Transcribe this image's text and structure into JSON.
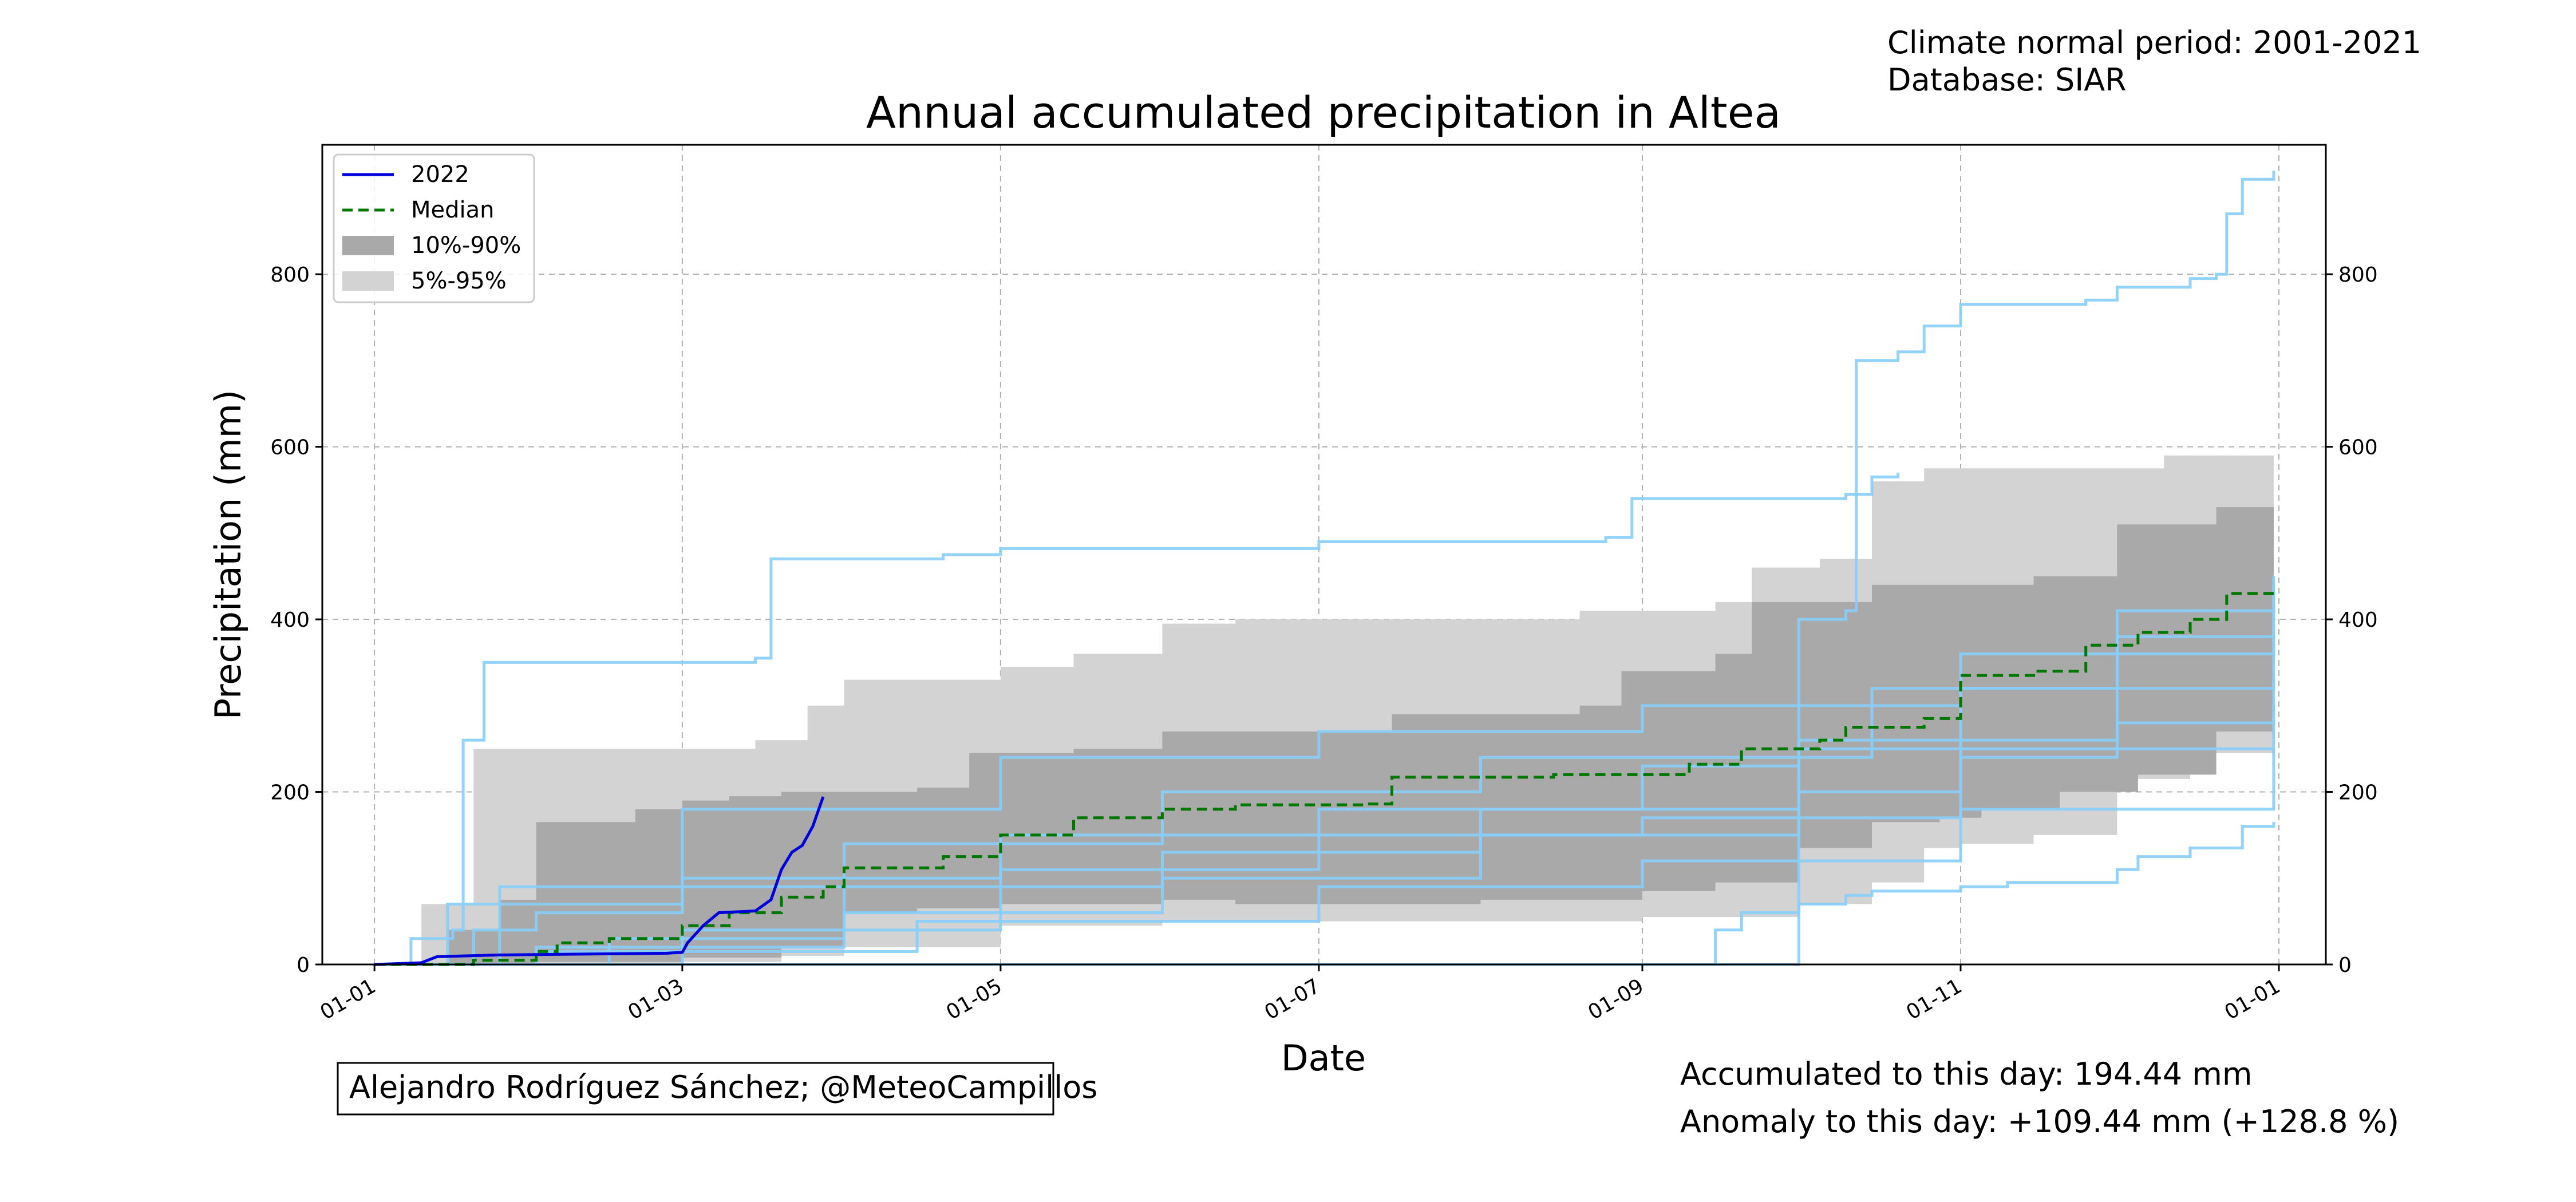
{
  "header": {
    "period_text": "Climate normal period: 2001-2021",
    "database_text": "Database: SIAR"
  },
  "footer": {
    "author_text": "Alejandro Rodríguez Sánchez; @MeteoCampillos",
    "accumulated_text": "Accumulated to this day: 194.44 mm",
    "anomaly_text": "Anomaly to this day: +109.44 mm (+128.8 %)",
    "anomaly_color": "#0000ff"
  },
  "colors": {
    "current": "#0000dd",
    "median": "#007700",
    "band_10_90": "#a9a9a9",
    "band_5_95": "#d3d3d3",
    "years": "#87cefa"
  },
  "chart_data": {
    "type": "line",
    "title": "Annual accumulated precipitation in Altea",
    "xlabel": "Date",
    "ylabel": "Precipitation (mm)",
    "xlim": [
      "2021-12-22",
      "2023-01-10"
    ],
    "ylim": [
      0,
      950
    ],
    "xticks": [
      "2022-01-01",
      "2022-03-01",
      "2022-05-01",
      "2022-07-01",
      "2022-09-01",
      "2022-11-01",
      "2023-01-01"
    ],
    "xtick_labels": [
      "01-01",
      "01-03",
      "01-05",
      "01-07",
      "01-09",
      "01-11",
      "01-01"
    ],
    "yticks": [
      0,
      200,
      400,
      600,
      800
    ],
    "grid": true,
    "right_axis": true,
    "legend": {
      "position": "top-left",
      "entries": [
        "2022",
        "Median",
        "10%-90%",
        "5%-95%"
      ]
    },
    "current_year": {
      "name": "2022",
      "points": [
        [
          "2022-01-01",
          0
        ],
        [
          "2022-01-10",
          2
        ],
        [
          "2022-01-13",
          9
        ],
        [
          "2022-01-25",
          11
        ],
        [
          "2022-02-10",
          12
        ],
        [
          "2022-02-26",
          13
        ],
        [
          "2022-03-01",
          14
        ],
        [
          "2022-03-02",
          25
        ],
        [
          "2022-03-05",
          45
        ],
        [
          "2022-03-08",
          60
        ],
        [
          "2022-03-15",
          62
        ],
        [
          "2022-03-18",
          75
        ],
        [
          "2022-03-20",
          110
        ],
        [
          "2022-03-22",
          130
        ],
        [
          "2022-03-24",
          138
        ],
        [
          "2022-03-26",
          160
        ],
        [
          "2022-03-28",
          194.44
        ]
      ]
    },
    "median": {
      "name": "Median",
      "points": [
        [
          "2022-01-01",
          0
        ],
        [
          "2022-01-20",
          5
        ],
        [
          "2022-02-01",
          15
        ],
        [
          "2022-02-05",
          25
        ],
        [
          "2022-02-15",
          30
        ],
        [
          "2022-03-01",
          45
        ],
        [
          "2022-03-10",
          60
        ],
        [
          "2022-03-20",
          78
        ],
        [
          "2022-03-28",
          90
        ],
        [
          "2022-04-01",
          112
        ],
        [
          "2022-04-20",
          125
        ],
        [
          "2022-05-01",
          150
        ],
        [
          "2022-05-15",
          170
        ],
        [
          "2022-06-01",
          180
        ],
        [
          "2022-06-15",
          185
        ],
        [
          "2022-07-10",
          186
        ],
        [
          "2022-07-15",
          217
        ],
        [
          "2022-08-15",
          220
        ],
        [
          "2022-09-10",
          232
        ],
        [
          "2022-09-20",
          250
        ],
        [
          "2022-10-05",
          260
        ],
        [
          "2022-10-10",
          275
        ],
        [
          "2022-10-25",
          285
        ],
        [
          "2022-11-01",
          335
        ],
        [
          "2022-11-15",
          340
        ],
        [
          "2022-11-25",
          370
        ],
        [
          "2022-12-05",
          385
        ],
        [
          "2022-12-15",
          400
        ],
        [
          "2022-12-22",
          430
        ],
        [
          "2022-12-31",
          433
        ]
      ]
    },
    "band_10_90": {
      "name": "10%-90%",
      "upper": [
        [
          "2022-01-01",
          0
        ],
        [
          "2022-01-15",
          40
        ],
        [
          "2022-01-25",
          75
        ],
        [
          "2022-02-01",
          165
        ],
        [
          "2022-02-20",
          180
        ],
        [
          "2022-03-01",
          190
        ],
        [
          "2022-03-10",
          195
        ],
        [
          "2022-03-20",
          200
        ],
        [
          "2022-04-15",
          205
        ],
        [
          "2022-04-25",
          245
        ],
        [
          "2022-05-15",
          250
        ],
        [
          "2022-06-01",
          270
        ],
        [
          "2022-07-15",
          290
        ],
        [
          "2022-08-20",
          300
        ],
        [
          "2022-08-28",
          340
        ],
        [
          "2022-09-15",
          360
        ],
        [
          "2022-09-22",
          420
        ],
        [
          "2022-10-15",
          440
        ],
        [
          "2022-11-15",
          450
        ],
        [
          "2022-12-01",
          510
        ],
        [
          "2022-12-20",
          530
        ],
        [
          "2022-12-31",
          580
        ]
      ],
      "lower": [
        [
          "2022-01-01",
          0
        ],
        [
          "2022-02-01",
          3
        ],
        [
          "2022-03-01",
          8
        ],
        [
          "2022-03-20",
          20
        ],
        [
          "2022-04-01",
          60
        ],
        [
          "2022-04-15",
          65
        ],
        [
          "2022-05-01",
          70
        ],
        [
          "2022-06-01",
          75
        ],
        [
          "2022-06-15",
          70
        ],
        [
          "2022-08-01",
          75
        ],
        [
          "2022-09-01",
          85
        ],
        [
          "2022-09-15",
          95
        ],
        [
          "2022-10-01",
          135
        ],
        [
          "2022-10-15",
          165
        ],
        [
          "2022-10-28",
          170
        ],
        [
          "2022-11-05",
          180
        ],
        [
          "2022-11-20",
          200
        ],
        [
          "2022-12-05",
          220
        ],
        [
          "2022-12-20",
          270
        ],
        [
          "2022-12-31",
          290
        ]
      ]
    },
    "band_5_95": {
      "name": "5%-95%",
      "upper": [
        [
          "2022-01-01",
          0
        ],
        [
          "2022-01-10",
          70
        ],
        [
          "2022-01-20",
          250
        ],
        [
          "2022-03-15",
          260
        ],
        [
          "2022-03-25",
          300
        ],
        [
          "2022-04-01",
          330
        ],
        [
          "2022-05-01",
          345
        ],
        [
          "2022-05-15",
          360
        ],
        [
          "2022-06-01",
          395
        ],
        [
          "2022-06-15",
          400
        ],
        [
          "2022-08-20",
          410
        ],
        [
          "2022-09-15",
          420
        ],
        [
          "2022-09-22",
          460
        ],
        [
          "2022-10-05",
          470
        ],
        [
          "2022-10-15",
          560
        ],
        [
          "2022-10-25",
          575
        ],
        [
          "2022-12-10",
          590
        ],
        [
          "2022-12-31",
          595
        ]
      ],
      "lower": [
        [
          "2022-01-01",
          0
        ],
        [
          "2022-02-01",
          1
        ],
        [
          "2022-03-01",
          3
        ],
        [
          "2022-03-20",
          10
        ],
        [
          "2022-04-01",
          20
        ],
        [
          "2022-05-01",
          45
        ],
        [
          "2022-06-01",
          50
        ],
        [
          "2022-07-01",
          50
        ],
        [
          "2022-08-01",
          50
        ],
        [
          "2022-09-01",
          55
        ],
        [
          "2022-10-01",
          70
        ],
        [
          "2022-10-15",
          95
        ],
        [
          "2022-10-25",
          135
        ],
        [
          "2022-11-01",
          140
        ],
        [
          "2022-11-15",
          150
        ],
        [
          "2022-12-01",
          215
        ],
        [
          "2022-12-15",
          245
        ],
        [
          "2022-12-31",
          250
        ]
      ]
    },
    "years": [
      {
        "points": [
          [
            "2022-01-01",
            0
          ],
          [
            "2022-01-08",
            30
          ],
          [
            "2022-01-16",
            40
          ],
          [
            "2022-01-18",
            260
          ],
          [
            "2022-01-22",
            350
          ],
          [
            "2022-03-15",
            355
          ],
          [
            "2022-03-18",
            470
          ],
          [
            "2022-04-20",
            475
          ],
          [
            "2022-05-01",
            482
          ],
          [
            "2022-07-01",
            490
          ],
          [
            "2022-08-25",
            495
          ],
          [
            "2022-08-30",
            540
          ],
          [
            "2022-10-10",
            545
          ],
          [
            "2022-10-15",
            565
          ],
          [
            "2022-10-20",
            570
          ]
        ]
      },
      {
        "points": [
          [
            "2022-01-01",
            0
          ],
          [
            "2022-09-15",
            40
          ],
          [
            "2022-09-20",
            60
          ],
          [
            "2022-10-01",
            70
          ],
          [
            "2022-10-10",
            80
          ],
          [
            "2022-10-15",
            85
          ],
          [
            "2022-11-01",
            90
          ],
          [
            "2022-11-10",
            95
          ],
          [
            "2022-12-01",
            110
          ],
          [
            "2022-12-05",
            125
          ],
          [
            "2022-12-15",
            135
          ],
          [
            "2022-12-25",
            160
          ],
          [
            "2022-12-31",
            165
          ]
        ]
      },
      {
        "points": [
          [
            "2022-01-01",
            0
          ],
          [
            "2022-10-01",
            400
          ],
          [
            "2022-10-10",
            410
          ],
          [
            "2022-10-12",
            700
          ],
          [
            "2022-10-20",
            710
          ],
          [
            "2022-10-25",
            740
          ],
          [
            "2022-11-01",
            765
          ],
          [
            "2022-11-25",
            770
          ],
          [
            "2022-12-01",
            785
          ],
          [
            "2022-12-15",
            795
          ],
          [
            "2022-12-20",
            800
          ],
          [
            "2022-12-22",
            870
          ],
          [
            "2022-12-25",
            910
          ],
          [
            "2022-12-31",
            920
          ]
        ]
      },
      {
        "points": [
          [
            "2022-01-01",
            0
          ],
          [
            "2022-01-20",
            40
          ],
          [
            "2022-02-01",
            60
          ],
          [
            "2022-03-01",
            100
          ],
          [
            "2022-05-01",
            150
          ],
          [
            "2022-07-01",
            180
          ],
          [
            "2022-09-01",
            230
          ],
          [
            "2022-10-01",
            250
          ],
          [
            "2022-11-01",
            320
          ],
          [
            "2022-12-01",
            380
          ],
          [
            "2022-12-31",
            440
          ]
        ]
      },
      {
        "points": [
          [
            "2022-01-01",
            0
          ],
          [
            "2022-02-01",
            20
          ],
          [
            "2022-04-01",
            60
          ],
          [
            "2022-06-01",
            100
          ],
          [
            "2022-08-01",
            150
          ],
          [
            "2022-10-01",
            200
          ],
          [
            "2022-11-01",
            240
          ],
          [
            "2022-12-01",
            280
          ],
          [
            "2022-12-31",
            330
          ]
        ]
      },
      {
        "points": [
          [
            "2022-01-01",
            0
          ],
          [
            "2022-01-15",
            70
          ],
          [
            "2022-03-01",
            180
          ],
          [
            "2022-05-01",
            240
          ],
          [
            "2022-07-01",
            270
          ],
          [
            "2022-09-01",
            300
          ],
          [
            "2022-11-01",
            360
          ],
          [
            "2022-12-31",
            420
          ]
        ]
      },
      {
        "points": [
          [
            "2022-01-01",
            0
          ],
          [
            "2022-03-01",
            40
          ],
          [
            "2022-05-01",
            110
          ],
          [
            "2022-07-01",
            150
          ],
          [
            "2022-09-01",
            170
          ],
          [
            "2022-11-01",
            250
          ],
          [
            "2022-12-31",
            300
          ]
        ]
      },
      {
        "points": [
          [
            "2022-01-01",
            0
          ],
          [
            "2022-02-15",
            30
          ],
          [
            "2022-04-01",
            90
          ],
          [
            "2022-06-01",
            130
          ],
          [
            "2022-08-01",
            180
          ],
          [
            "2022-10-01",
            260
          ],
          [
            "2022-12-01",
            410
          ],
          [
            "2022-12-31",
            450
          ]
        ]
      },
      {
        "points": [
          [
            "2022-01-01",
            0
          ],
          [
            "2022-02-01",
            15
          ],
          [
            "2022-04-15",
            50
          ],
          [
            "2022-07-01",
            90
          ],
          [
            "2022-09-01",
            120
          ],
          [
            "2022-11-01",
            180
          ],
          [
            "2022-12-31",
            250
          ]
        ]
      },
      {
        "points": [
          [
            "2022-01-01",
            0
          ],
          [
            "2022-01-25",
            90
          ],
          [
            "2022-04-01",
            140
          ],
          [
            "2022-06-01",
            200
          ],
          [
            "2022-08-01",
            240
          ],
          [
            "2022-10-15",
            320
          ],
          [
            "2022-12-31",
            380
          ]
        ]
      }
    ]
  }
}
